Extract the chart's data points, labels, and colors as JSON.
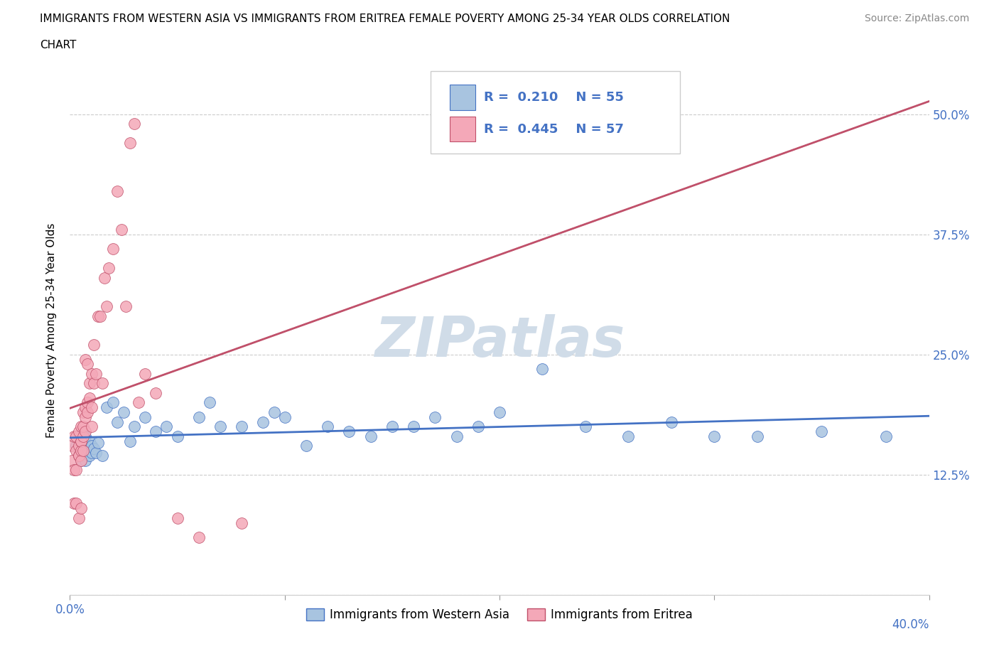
{
  "title_line1": "IMMIGRANTS FROM WESTERN ASIA VS IMMIGRANTS FROM ERITREA FEMALE POVERTY AMONG 25-34 YEAR OLDS CORRELATION",
  "title_line2": "CHART",
  "source": "Source: ZipAtlas.com",
  "ylabel": "Female Poverty Among 25-34 Year Olds",
  "x_min": 0.0,
  "x_max": 0.4,
  "y_min": 0.0,
  "y_max": 0.55,
  "y_ticks": [
    0.0,
    0.125,
    0.25,
    0.375,
    0.5
  ],
  "y_tick_labels_right": [
    "",
    "12.5%",
    "25.0%",
    "37.5%",
    "50.0%"
  ],
  "x_ticks": [
    0.0,
    0.1,
    0.2,
    0.3,
    0.4
  ],
  "r_western_asia": 0.21,
  "n_western_asia": 55,
  "r_eritrea": 0.445,
  "n_eritrea": 57,
  "color_western_asia": "#a8c4e0",
  "color_eritrea": "#f4a8b8",
  "trendline_color_western_asia": "#4472c4",
  "trendline_color_eritrea": "#c0506a",
  "watermark_text": "ZIPatlas",
  "watermark_color": "#d0dce8",
  "legend_label_western": "Immigrants from Western Asia",
  "legend_label_eritrea": "Immigrants from Eritrea",
  "western_asia_x": [
    0.003,
    0.004,
    0.004,
    0.005,
    0.005,
    0.005,
    0.006,
    0.006,
    0.007,
    0.007,
    0.008,
    0.008,
    0.009,
    0.009,
    0.01,
    0.01,
    0.011,
    0.012,
    0.013,
    0.015,
    0.017,
    0.02,
    0.022,
    0.025,
    0.028,
    0.03,
    0.035,
    0.04,
    0.045,
    0.05,
    0.06,
    0.065,
    0.07,
    0.08,
    0.09,
    0.095,
    0.1,
    0.11,
    0.12,
    0.13,
    0.14,
    0.15,
    0.16,
    0.17,
    0.18,
    0.19,
    0.2,
    0.22,
    0.24,
    0.26,
    0.28,
    0.3,
    0.32,
    0.35,
    0.38
  ],
  "western_asia_y": [
    0.155,
    0.145,
    0.165,
    0.15,
    0.14,
    0.16,
    0.145,
    0.155,
    0.14,
    0.165,
    0.15,
    0.155,
    0.145,
    0.16,
    0.148,
    0.155,
    0.152,
    0.148,
    0.158,
    0.145,
    0.195,
    0.2,
    0.18,
    0.19,
    0.16,
    0.175,
    0.185,
    0.17,
    0.175,
    0.165,
    0.185,
    0.2,
    0.175,
    0.175,
    0.18,
    0.19,
    0.185,
    0.155,
    0.175,
    0.17,
    0.165,
    0.175,
    0.175,
    0.185,
    0.165,
    0.175,
    0.19,
    0.235,
    0.175,
    0.165,
    0.18,
    0.165,
    0.165,
    0.17,
    0.165
  ],
  "eritrea_x": [
    0.001,
    0.001,
    0.002,
    0.002,
    0.002,
    0.003,
    0.003,
    0.003,
    0.003,
    0.004,
    0.004,
    0.004,
    0.004,
    0.004,
    0.005,
    0.005,
    0.005,
    0.005,
    0.005,
    0.005,
    0.006,
    0.006,
    0.006,
    0.006,
    0.007,
    0.007,
    0.007,
    0.007,
    0.008,
    0.008,
    0.008,
    0.009,
    0.009,
    0.01,
    0.01,
    0.01,
    0.011,
    0.011,
    0.012,
    0.013,
    0.014,
    0.015,
    0.016,
    0.017,
    0.018,
    0.02,
    0.022,
    0.024,
    0.026,
    0.028,
    0.03,
    0.032,
    0.035,
    0.04,
    0.05,
    0.06,
    0.08
  ],
  "eritrea_y": [
    0.14,
    0.155,
    0.095,
    0.13,
    0.165,
    0.15,
    0.165,
    0.13,
    0.095,
    0.145,
    0.155,
    0.145,
    0.08,
    0.17,
    0.16,
    0.15,
    0.09,
    0.14,
    0.16,
    0.175,
    0.15,
    0.165,
    0.175,
    0.19,
    0.17,
    0.195,
    0.185,
    0.245,
    0.19,
    0.2,
    0.24,
    0.205,
    0.22,
    0.195,
    0.23,
    0.175,
    0.22,
    0.26,
    0.23,
    0.29,
    0.29,
    0.22,
    0.33,
    0.3,
    0.34,
    0.36,
    0.42,
    0.38,
    0.3,
    0.47,
    0.49,
    0.2,
    0.23,
    0.21,
    0.08,
    0.06,
    0.075
  ]
}
